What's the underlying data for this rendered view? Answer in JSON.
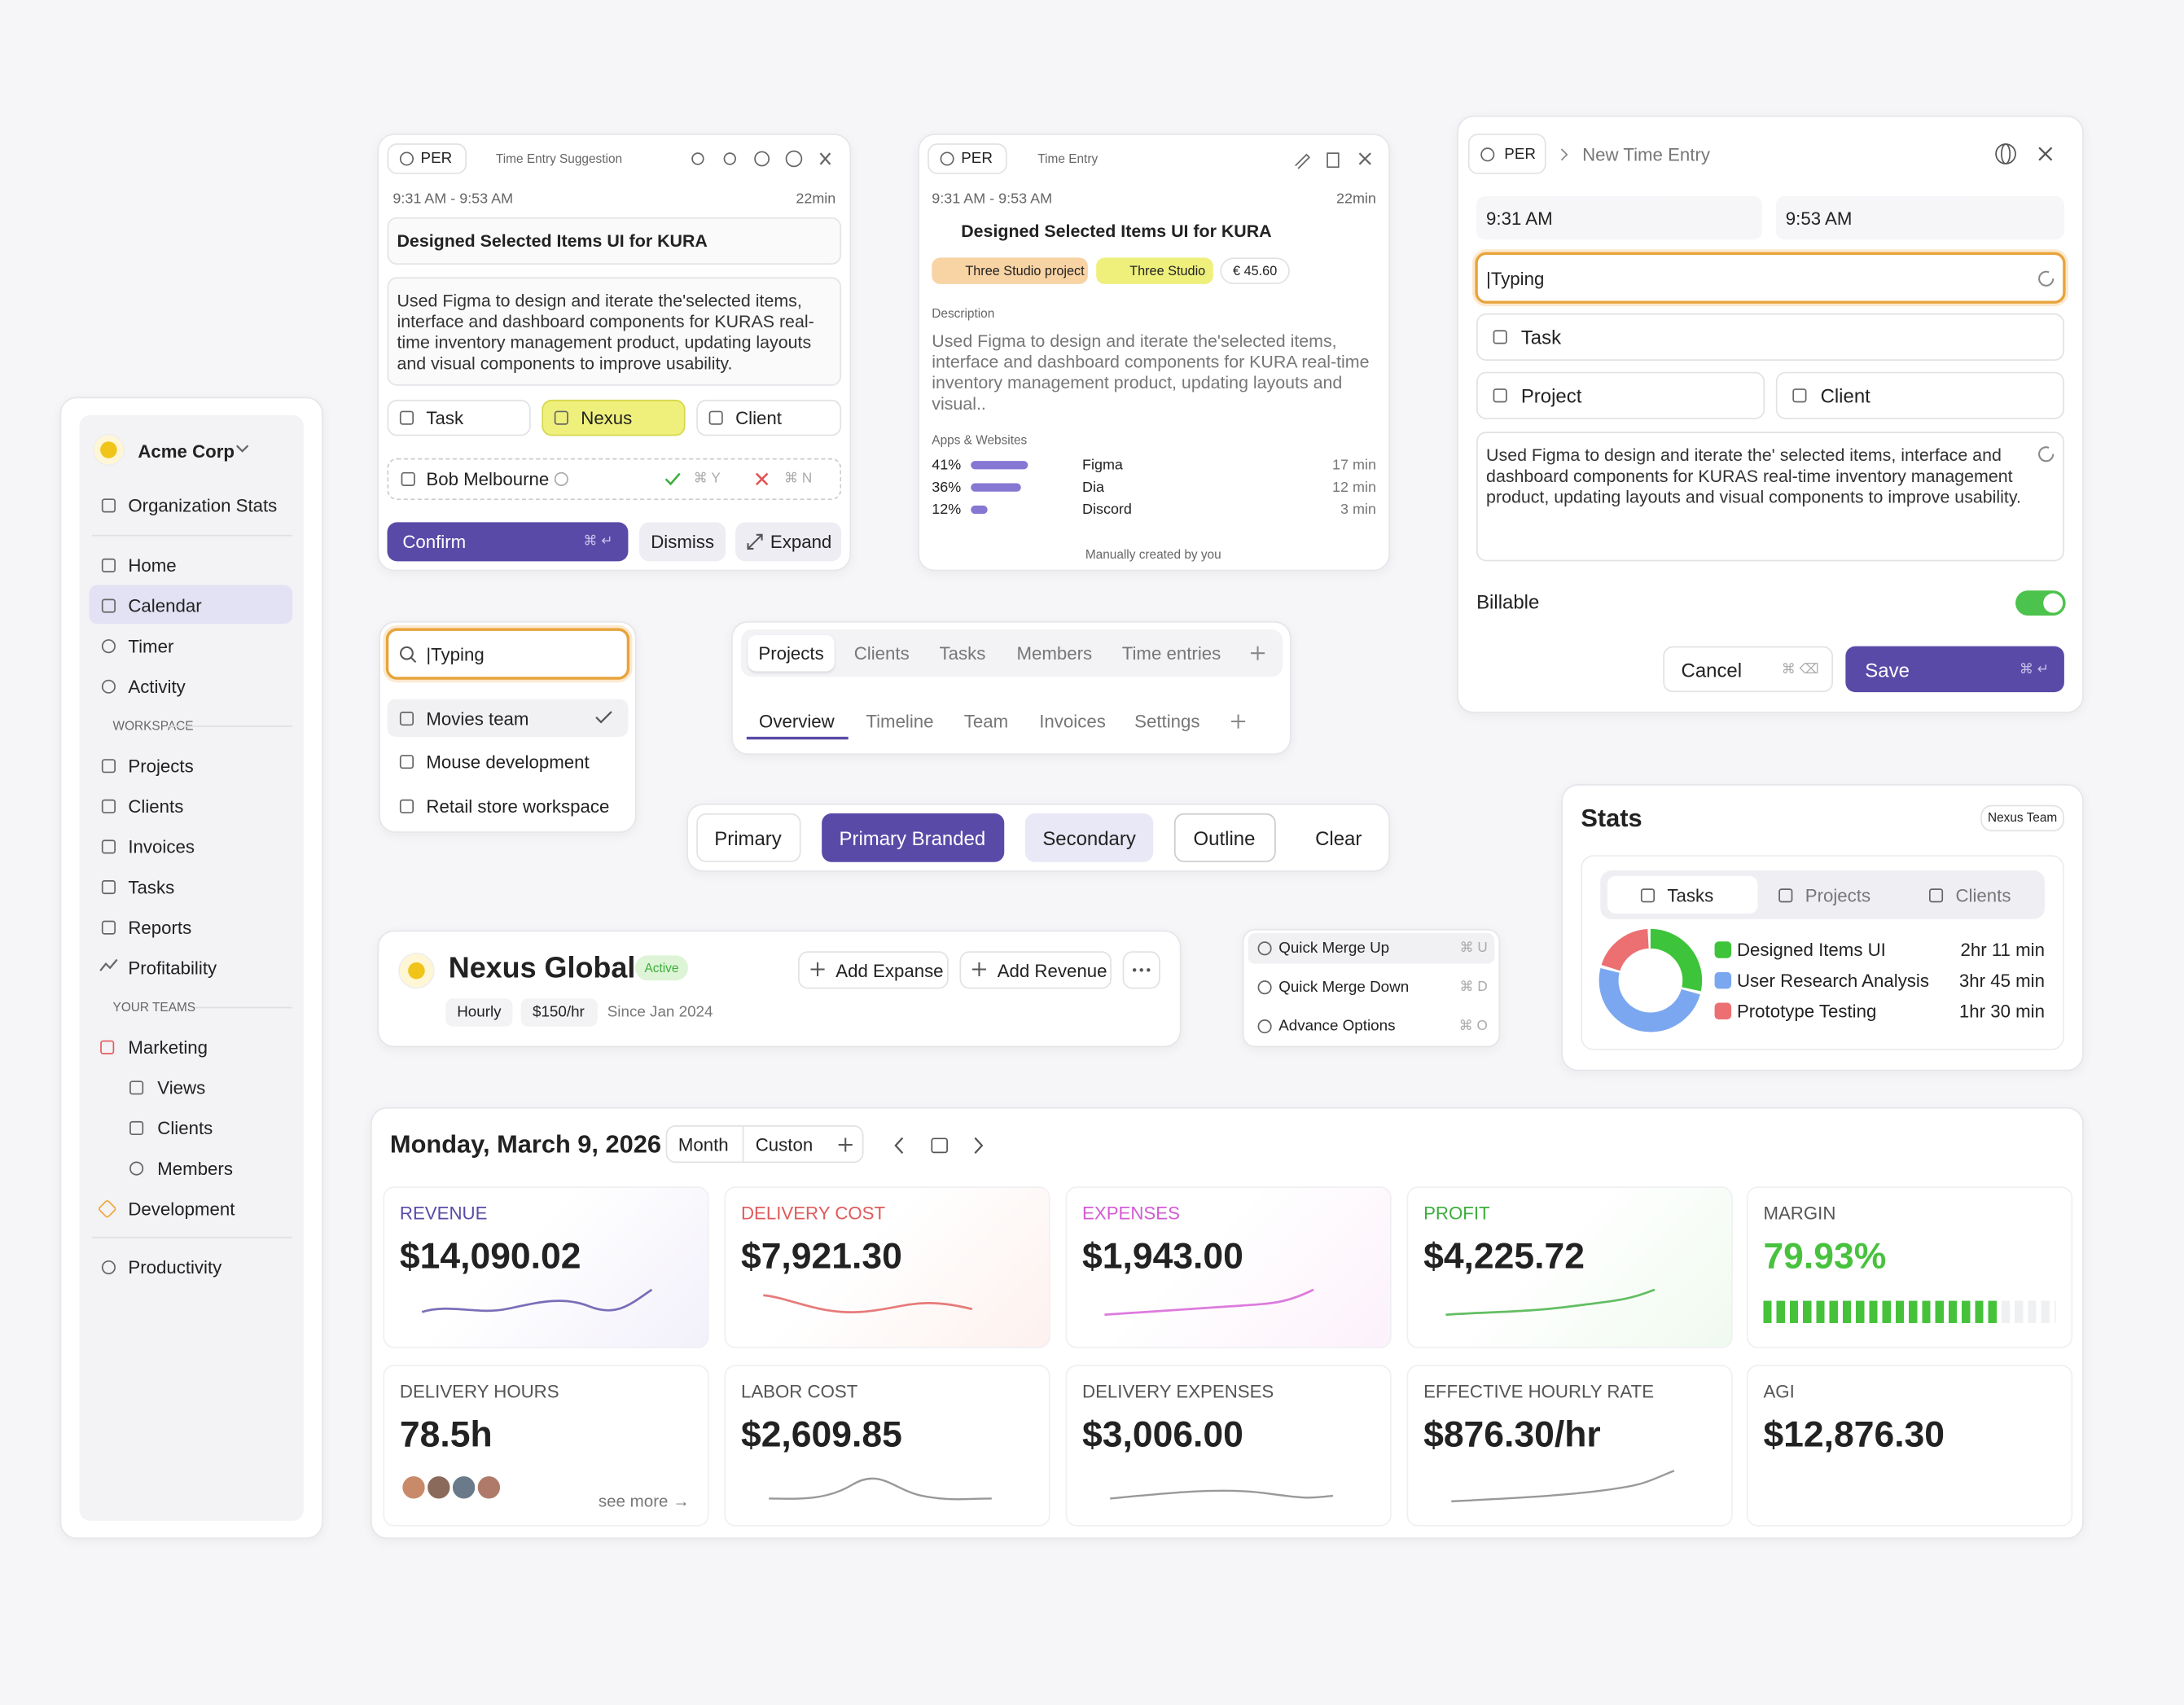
{
  "sidebar": {
    "org": "Acme Corp",
    "org_stats": "Organization Stats",
    "nav": [
      "Home",
      "Calendar",
      "Timer",
      "Activity"
    ],
    "workspace_label": "WORKSPACE",
    "workspace": [
      "Projects",
      "Clients",
      "Invoices",
      "Tasks",
      "Reports",
      "Profitability"
    ],
    "teams_label": "YOUR TEAMS",
    "teams": [
      {
        "name": "Marketing",
        "children": [
          "Views",
          "Clients",
          "Members"
        ]
      },
      {
        "name": "Development"
      }
    ],
    "productivity": "Productivity"
  },
  "suggestion_card": {
    "user": "PER",
    "title": "Time Entry Suggestion",
    "time": "9:31 AM - 9:53 AM",
    "duration": "22min",
    "entry_title": "Designed Selected Items UI for KURA",
    "description": "Used Figma to design and iterate the'selected items, interface and dashboard components for KURAS real-time inventory management product, updating layouts and visual components to improve usability.",
    "chips": [
      "Task",
      "Nexus",
      "Client"
    ],
    "person": "Bob Melbourne",
    "shortcut_yes": "⌘ Y",
    "shortcut_no": "⌘ N",
    "confirm": "Confirm",
    "confirm_key": "⌘ ↵",
    "dismiss": "Dismiss",
    "expand": "Expand"
  },
  "entry_card": {
    "user": "PER",
    "title": "Time Entry",
    "time": "9:31 AM - 9:53 AM",
    "duration": "22min",
    "entry_title": "Designed Selected Items UI for KURA",
    "tags": [
      "Three Studio project",
      "Three Studio"
    ],
    "amount": "€ 45.60",
    "description_label": "Description",
    "description": "Used Figma to design and iterate the'selected items, interface and dashboard components for KURA real-time inventory management product, updating layouts and visual..",
    "apps_label": "Apps & Websites",
    "apps": [
      {
        "percent": {
          "value": 41,
          "label": "41%"
        },
        "name": "Figma",
        "time": "17 min"
      },
      {
        "percent": {
          "value": 36,
          "label": "36%"
        },
        "name": "Dia",
        "time": "12 min"
      },
      {
        "percent": {
          "value": 12,
          "label": "12%"
        },
        "name": "Discord",
        "time": "3 min"
      }
    ],
    "footer": "Manually created by you"
  },
  "new_entry": {
    "user": "PER",
    "title": "New Time Entry",
    "start": "9:31 AM",
    "end": "9:53 AM",
    "input": "|Typing",
    "task": "Task",
    "project": "Project",
    "client": "Client",
    "description": "Used Figma to design and iterate the' selected items, interface and dashboard components for KURAS real-time inventory management product, updating layouts and visual components to improve usability.",
    "billable_label": "Billable",
    "billable": true,
    "cancel": "Cancel",
    "cancel_key": "⌘ ⌫",
    "save": "Save",
    "save_key": "⌘ ↵"
  },
  "search": {
    "input": "|Typing",
    "options": [
      "Movies team",
      "Mouse development",
      "Retail store workspace"
    ]
  },
  "tabs": {
    "primary": [
      "Projects",
      "Clients",
      "Tasks",
      "Members",
      "Time entries"
    ],
    "secondary": [
      "Overview",
      "Timeline",
      "Team",
      "Invoices",
      "Settings"
    ]
  },
  "buttons": [
    "Primary",
    "Primary Branded",
    "Secondary",
    "Outline",
    "Clear"
  ],
  "client": {
    "name": "Nexus Global",
    "status": "Active",
    "tags": [
      "Hourly",
      "$150/hr"
    ],
    "since": "Since Jan 2024",
    "add_expense": "Add Expanse",
    "add_revenue": "Add Revenue"
  },
  "menu": [
    {
      "label": "Quick Merge Up",
      "key": "⌘ U"
    },
    {
      "label": "Quick Merge Down",
      "key": "⌘ D"
    },
    {
      "label": "Advance Options",
      "key": "⌘ O"
    }
  ],
  "stats": {
    "title": "Stats",
    "team": "Nexus Team",
    "tabs": [
      "Tasks",
      "Projects",
      "Clients"
    ],
    "items": [
      {
        "name": "Designed Items UI",
        "color": "#3dc43a",
        "minutes": {
          "value": 131,
          "label": "2hr 11 min"
        }
      },
      {
        "name": "User Research Analysis",
        "color": "#7ba7f0",
        "minutes": {
          "value": 225,
          "label": "3hr 45 min"
        }
      },
      {
        "name": "Prototype Testing",
        "color": "#ec6f72",
        "minutes": {
          "value": 90,
          "label": "1hr 30 min"
        }
      }
    ]
  },
  "dashboard": {
    "date": "Monday, March 9, 2026",
    "views": [
      "Month",
      "Custon"
    ],
    "metrics": [
      {
        "label": "REVENUE",
        "value": "$14,090.02"
      },
      {
        "label": "DELIVERY COST",
        "value": "$7,921.30"
      },
      {
        "label": "EXPENSES",
        "value": "$1,943.00"
      },
      {
        "label": "PROFIT",
        "value": "$4,225.72"
      },
      {
        "label": "DELIVERY HOURS",
        "value": "78.5h"
      },
      {
        "label": "LABOR COST",
        "value": "$2,609.85"
      },
      {
        "label": "DELIVERY EXPENSES",
        "value": "$3,006.00"
      },
      {
        "label": "EFFECTIVE HOURLY RATE",
        "value": "$876.30/hr"
      },
      {
        "label": "AGI",
        "value": "$12,876.30"
      }
    ],
    "margin": {
      "label": "MARGIN",
      "value": {
        "value": 79.93,
        "label": "79.93%"
      }
    },
    "see_more": "see more →"
  }
}
